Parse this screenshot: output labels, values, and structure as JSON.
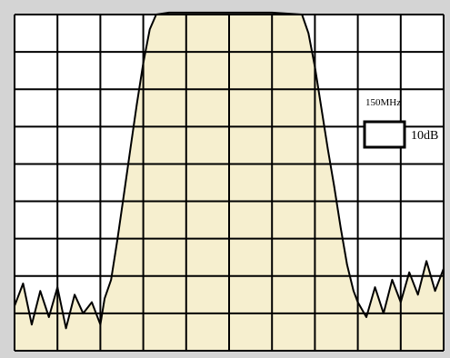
{
  "colors": {
    "frame": "#d4d4d4",
    "plot_background": "#ffffff",
    "passband_fill": "#f6efcf",
    "grid": "#000000",
    "trace": "#000000"
  },
  "chart_data": {
    "type": "line",
    "title": "",
    "xlabel": "",
    "ylabel": "",
    "grid": true,
    "grid_divisions": {
      "x": 10,
      "y": 9
    },
    "scale": {
      "x_per_div_label": "150MHz",
      "y_per_div_label": "10dB"
    },
    "x_unit": "divisions",
    "y_unit": "divisions",
    "xlim": [
      0,
      10
    ],
    "ylim": [
      0,
      9
    ],
    "series": [
      {
        "fill_under": true,
        "x": [
          0,
          0.2,
          0.4,
          0.6,
          0.8,
          1.0,
          1.2,
          1.4,
          1.6,
          1.8,
          2.0,
          2.1,
          2.25,
          2.4,
          2.55,
          2.7,
          2.85,
          3.0,
          3.15,
          3.3,
          3.6,
          4.0,
          5.0,
          6.0,
          6.7,
          6.85,
          7.0,
          7.15,
          7.3,
          7.45,
          7.6,
          7.75,
          7.9,
          8.0,
          8.2,
          8.4,
          8.6,
          8.8,
          9.0,
          9.2,
          9.4,
          9.6,
          9.8,
          10.0
        ],
        "y": [
          1.2,
          1.8,
          0.7,
          1.6,
          0.9,
          1.7,
          0.6,
          1.5,
          1.0,
          1.3,
          0.7,
          1.4,
          1.9,
          3.0,
          4.2,
          5.4,
          6.6,
          7.7,
          8.6,
          9.0,
          9.05,
          9.05,
          9.05,
          9.05,
          9.0,
          8.5,
          7.6,
          6.5,
          5.4,
          4.4,
          3.3,
          2.3,
          1.6,
          1.3,
          0.9,
          1.7,
          1.0,
          1.9,
          1.3,
          2.1,
          1.5,
          2.4,
          1.6,
          2.2
        ]
      }
    ]
  }
}
